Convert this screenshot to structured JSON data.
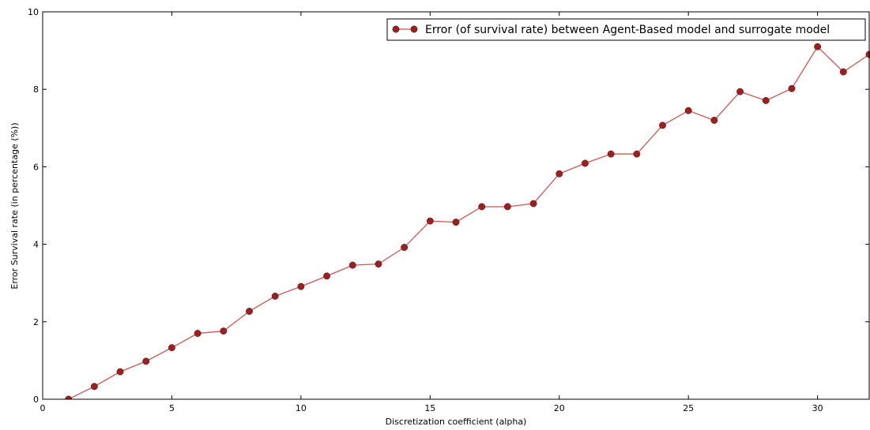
{
  "chart_data": {
    "type": "line",
    "title": "",
    "xlabel": "Discretization coefficient (alpha)",
    "ylabel": "Error Survival rate (in percentage (%))",
    "xlim": [
      0,
      32
    ],
    "ylim": [
      0,
      10
    ],
    "xticks": [
      0,
      5,
      10,
      15,
      20,
      25,
      30
    ],
    "yticks": [
      0,
      2,
      4,
      6,
      8,
      10
    ],
    "grid": false,
    "legend_position": "top-right",
    "series": [
      {
        "name": "Error (of survival rate) between Agent-Based model and surrogate model",
        "line_color": "#cc5555",
        "marker_color": "#9b2020",
        "x": [
          1,
          2,
          3,
          4,
          5,
          6,
          7,
          8,
          9,
          10,
          11,
          12,
          13,
          14,
          15,
          16,
          17,
          18,
          19,
          20,
          21,
          22,
          23,
          24,
          25,
          26,
          27,
          28,
          29,
          30,
          31,
          32
        ],
        "values": [
          0.0,
          0.33,
          0.71,
          0.98,
          1.33,
          1.7,
          1.76,
          2.27,
          2.66,
          2.91,
          3.18,
          3.46,
          3.49,
          3.92,
          4.6,
          4.57,
          4.97,
          4.97,
          5.05,
          5.82,
          6.09,
          6.33,
          6.33,
          7.07,
          7.45,
          7.2,
          7.94,
          7.71,
          8.02,
          9.1,
          8.45,
          8.9
        ]
      }
    ]
  }
}
